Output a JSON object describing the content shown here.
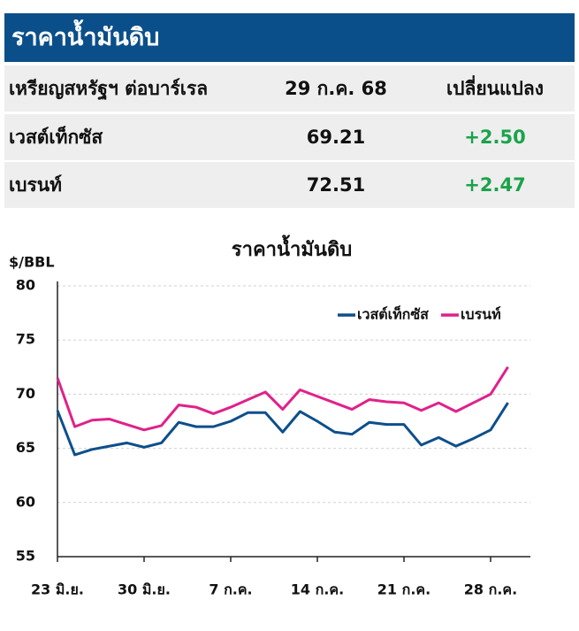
{
  "header": {
    "title": "ราคาน้ำมันดิบ"
  },
  "table": {
    "columns": [
      "เหรียญสหรัฐฯ ต่อบาร์เรล",
      "29 ก.ค. 68",
      "เปลี่ยนแปลง"
    ],
    "rows": [
      [
        "เวสต์เท็กซัส",
        "69.21",
        "+2.50"
      ],
      [
        "เบรนท์",
        "72.51",
        "+2.47"
      ]
    ]
  },
  "chart_data": {
    "type": "line",
    "title": "ราคาน้ำมันดิบ",
    "y_label": "$/BBL",
    "categories": [
      "23 มิ.ย.",
      null,
      null,
      null,
      null,
      "30 มิ.ย.",
      null,
      null,
      null,
      null,
      "7 ก.ค.",
      null,
      null,
      null,
      null,
      "14 ก.ค.",
      null,
      null,
      null,
      null,
      "21 ก.ค.",
      null,
      null,
      null,
      null,
      "28 ก.ค.",
      null
    ],
    "series": [
      {
        "name": "เวสต์เท็กซัส",
        "color": "#0d4f8b",
        "values": [
          68.5,
          64.4,
          64.9,
          65.2,
          65.5,
          65.1,
          65.5,
          67.4,
          67.0,
          67.0,
          67.5,
          68.3,
          68.3,
          66.5,
          68.4,
          67.5,
          66.5,
          66.3,
          67.4,
          67.2,
          67.2,
          65.3,
          66.0,
          65.2,
          65.9,
          66.7,
          69.21
        ]
      },
      {
        "name": "เบรนท์",
        "color": "#e0218a",
        "values": [
          71.5,
          67.0,
          67.6,
          67.7,
          67.2,
          66.7,
          67.1,
          69.0,
          68.8,
          68.2,
          68.8,
          69.5,
          70.2,
          68.6,
          70.4,
          69.8,
          69.2,
          68.6,
          69.5,
          69.3,
          69.2,
          68.5,
          69.2,
          68.4,
          69.2,
          70.0,
          72.51
        ]
      }
    ],
    "ylim": [
      55,
      80
    ],
    "yticks": [
      55,
      60,
      65,
      70,
      75,
      80
    ],
    "grid": true,
    "legend": "top-right"
  }
}
